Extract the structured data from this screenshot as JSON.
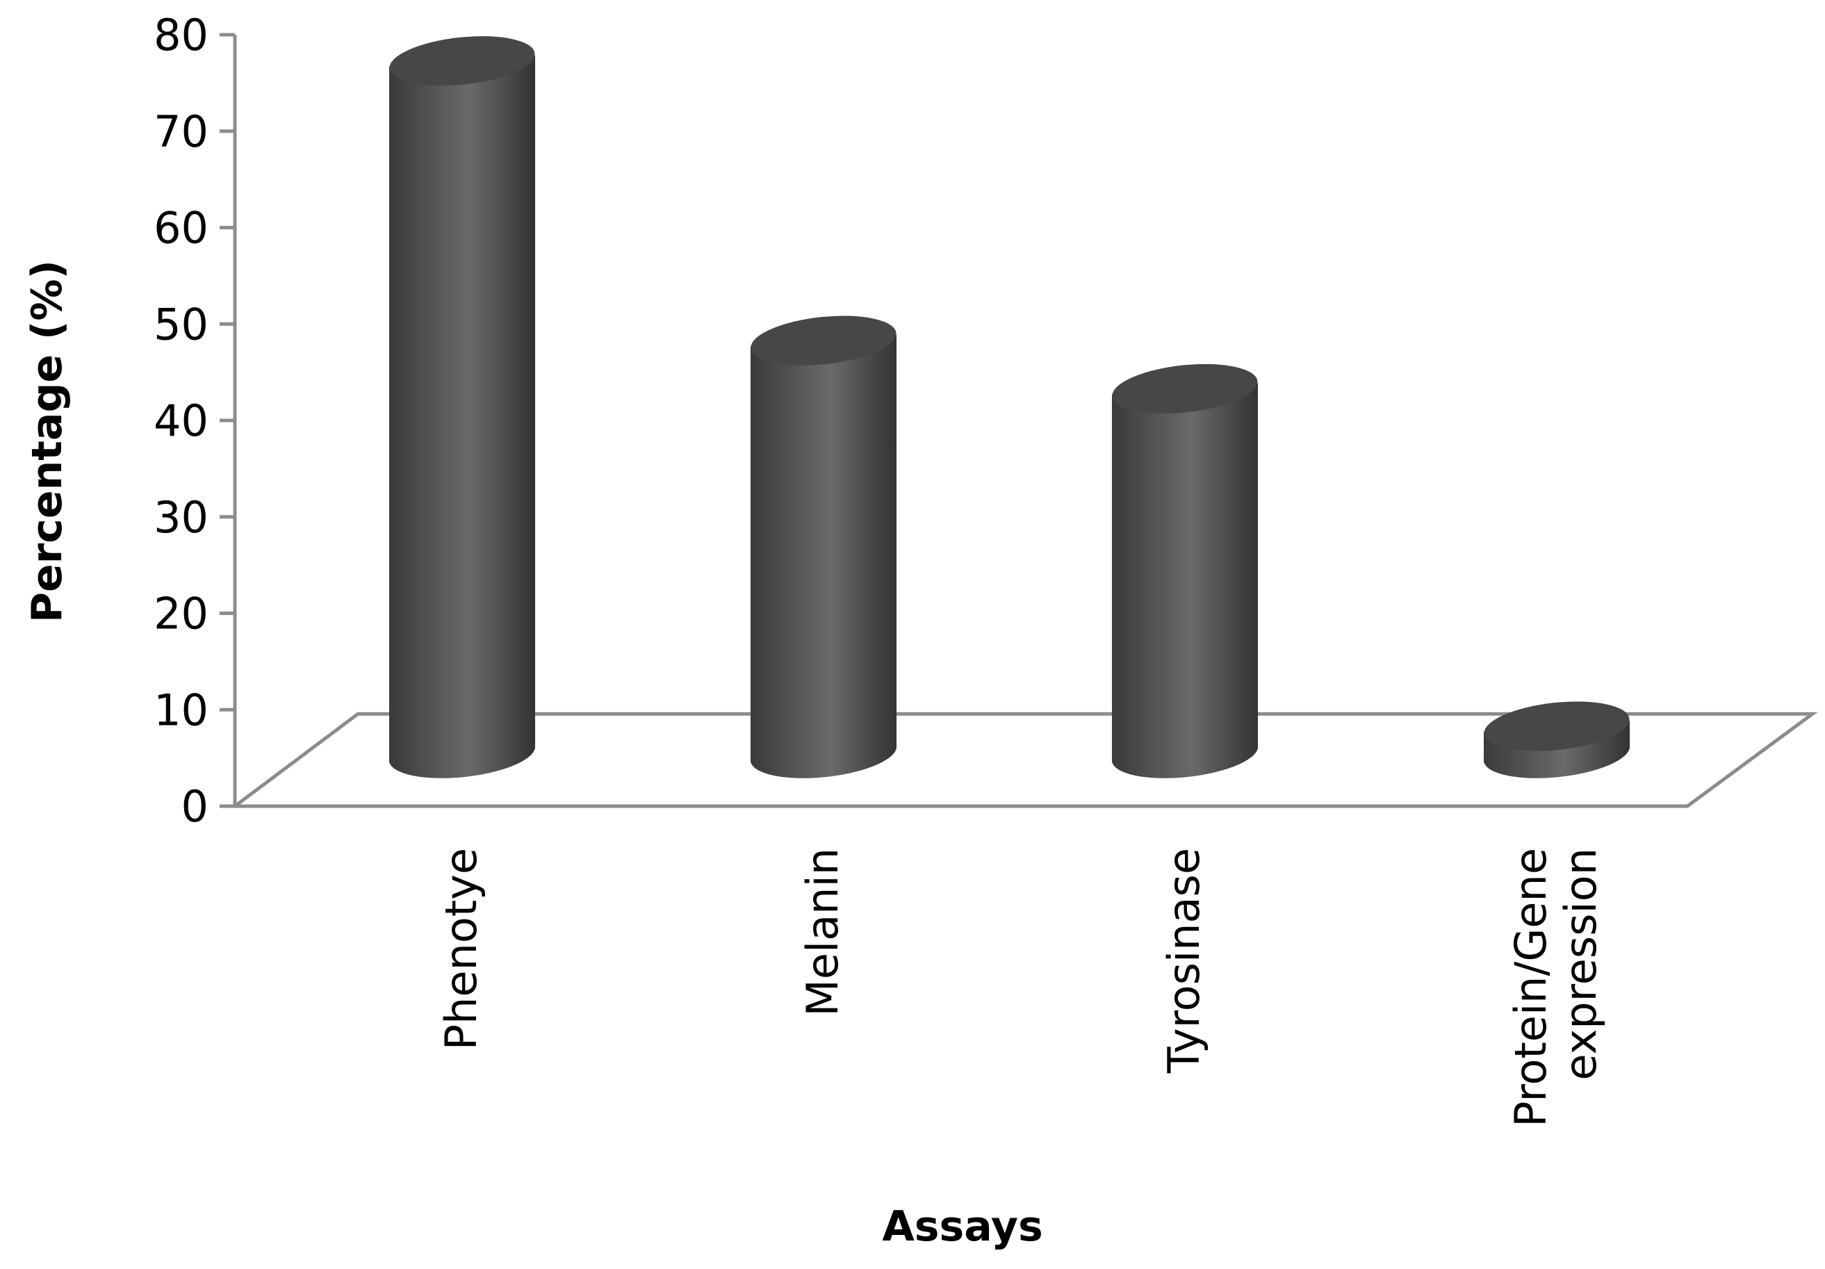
{
  "chart_data": {
    "type": "bar",
    "style": "3d-cylinder",
    "categories": [
      "Phenotye",
      "Melanin",
      "Tyrosinase",
      "Protein/Gene expression"
    ],
    "category_lines": [
      [
        "Phenotye"
      ],
      [
        "Melanin"
      ],
      [
        "Tyrosinase"
      ],
      [
        "Protein/Gene",
        "expression"
      ]
    ],
    "values": [
      77,
      48,
      43,
      8
    ],
    "xlabel": "Assays",
    "ylabel": "Percentage (%)",
    "ylim": [
      0,
      80
    ],
    "yticks": [
      0,
      10,
      20,
      30,
      40,
      50,
      60,
      70,
      80
    ],
    "grid": false,
    "legend": "none",
    "colors": {
      "bar_dark": "#3a3a3a",
      "bar_mid": "#6a6a6a",
      "bar_top": "#474747",
      "axis": "#8c8c8c"
    }
  }
}
